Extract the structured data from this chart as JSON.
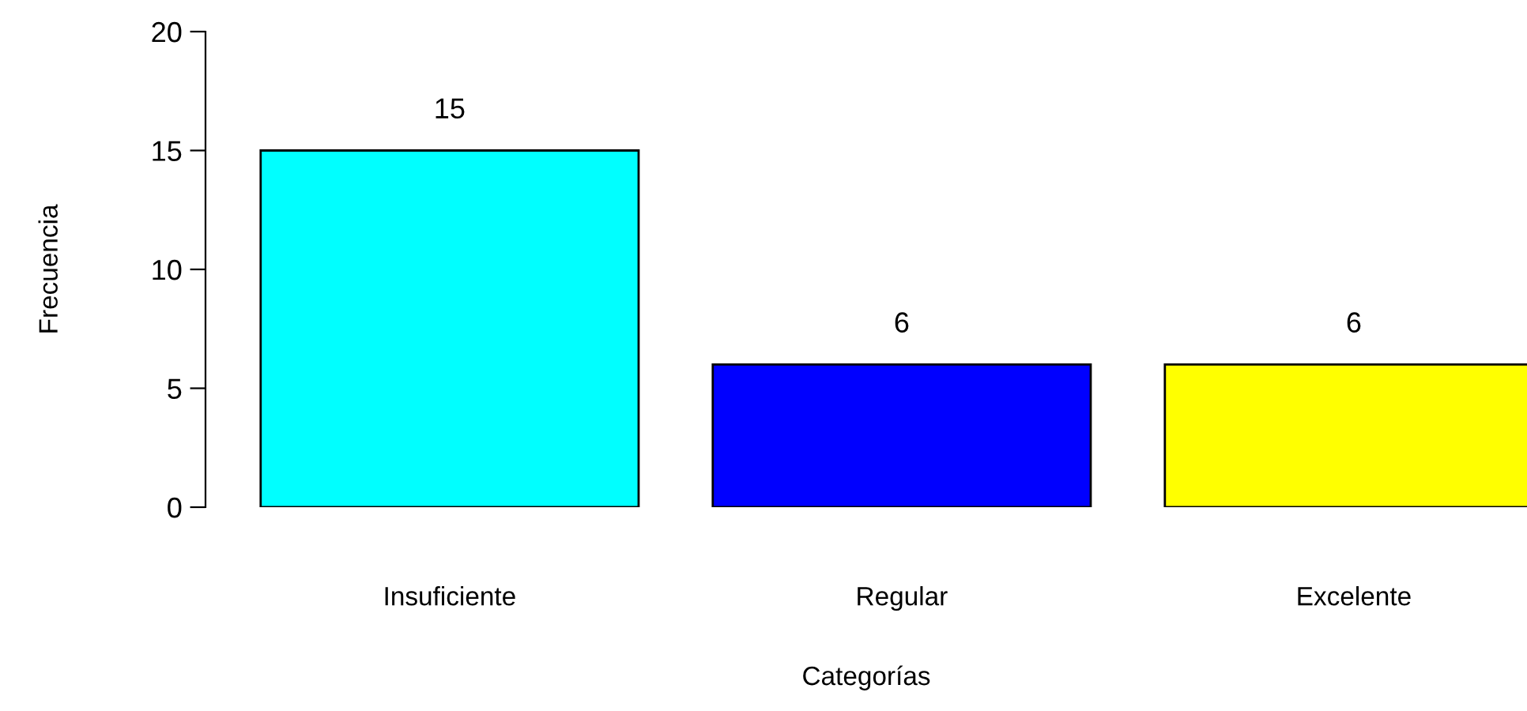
{
  "chart_data": {
    "type": "bar",
    "xlabel": "Categorías",
    "ylabel": "Frecuencia",
    "categories": [
      "Insuficiente",
      "Regular",
      "Excelente"
    ],
    "values": [
      15,
      6,
      6
    ],
    "colors": [
      "#00ffff",
      "#0000ff",
      "#ffff00"
    ],
    "ylim": [
      0,
      20
    ],
    "yticks": [
      0,
      5,
      10,
      15,
      20
    ],
    "data_labels": true,
    "grid": false,
    "legend": false
  }
}
